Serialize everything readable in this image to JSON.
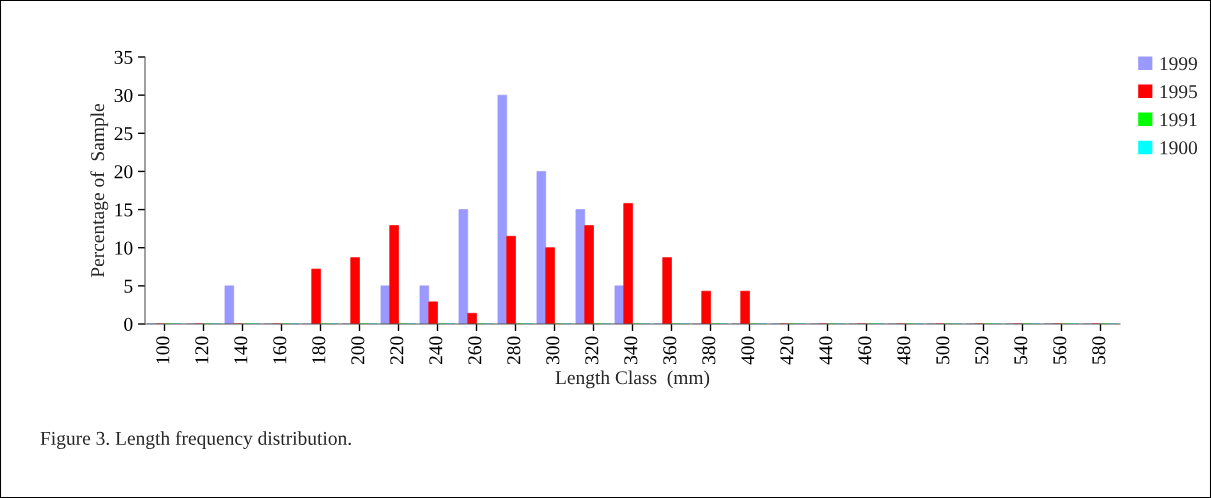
{
  "chart_data": {
    "type": "bar",
    "xlabel": "Length Class  (mm)",
    "ylabel": "Percentage of  Sample",
    "categories": [
      "100",
      "120",
      "140",
      "160",
      "180",
      "200",
      "220",
      "240",
      "260",
      "280",
      "300",
      "320",
      "340",
      "360",
      "380",
      "400",
      "420",
      "440",
      "460",
      "480",
      "500",
      "520",
      "540",
      "560",
      "580"
    ],
    "series": [
      {
        "name": "1999",
        "color": "#9999ff",
        "values": [
          0,
          0,
          5,
          0,
          0,
          0,
          5,
          5,
          15,
          30,
          20,
          15,
          5,
          0,
          0,
          0,
          0,
          0,
          0,
          0,
          0,
          0,
          0,
          0,
          0
        ]
      },
      {
        "name": "1995",
        "color": "#ff0000",
        "values": [
          0,
          0,
          0,
          0,
          7.2,
          8.7,
          12.9,
          2.9,
          1.4,
          11.5,
          10.0,
          12.9,
          15.8,
          8.7,
          4.3,
          4.3,
          0,
          0,
          0,
          0,
          0,
          0,
          0,
          0,
          0
        ]
      },
      {
        "name": "1991",
        "color": "#00ff00",
        "values": [
          0,
          0,
          0,
          0,
          0,
          0,
          0,
          0,
          0,
          0,
          0,
          0,
          0,
          0,
          0,
          0,
          0,
          0,
          0,
          0,
          0,
          0,
          0,
          0,
          0
        ]
      },
      {
        "name": "1900",
        "color": "#00ffff",
        "values": [
          0,
          0,
          0,
          0,
          0,
          0,
          0,
          0,
          0,
          0,
          0,
          0,
          0,
          0,
          0,
          0,
          0,
          0,
          0,
          0,
          0,
          0,
          0,
          0,
          0
        ]
      }
    ],
    "ylim": [
      0,
      35
    ],
    "yticks": [
      0,
      5,
      10,
      15,
      20,
      25,
      30,
      35
    ],
    "grid": false,
    "legend": "top right",
    "annotations": [
      "Figure 3. Length frequency distribution."
    ]
  }
}
